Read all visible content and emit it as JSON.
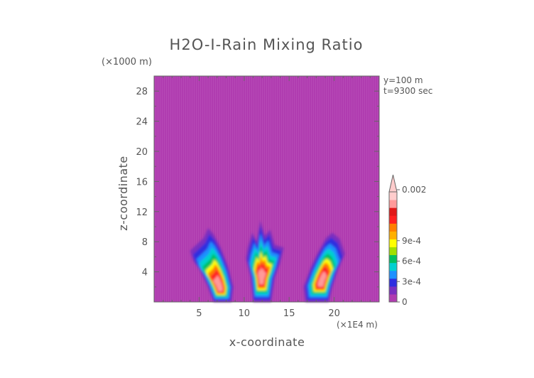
{
  "chart_data": {
    "type": "heatmap",
    "title": "H2O-I-Rain Mixing Ratio",
    "xlabel": "x-coordinate",
    "ylabel": "z-coordinate",
    "x_units": "(×1E4 m)",
    "y_units": "(×1000 m)",
    "xlim": [
      0,
      25
    ],
    "ylim": [
      0,
      30
    ],
    "x_ticks": [
      5,
      10,
      15,
      20
    ],
    "y_ticks": [
      4,
      8,
      12,
      16,
      20,
      24,
      28
    ],
    "annotations": [
      "y=100 m",
      "t=9300 sec"
    ],
    "background_color": "#b03cb0",
    "colorbar": {
      "labels": [
        {
          "value": 0,
          "text": "0"
        },
        {
          "value": 0.0003,
          "text": "3e-4"
        },
        {
          "value": 0.0006,
          "text": "6e-4"
        },
        {
          "value": 0.0009,
          "text": "9e-4"
        },
        {
          "value": 0.002,
          "text": "0.002"
        }
      ],
      "colors": [
        "#b03cb0",
        "#7a2fc0",
        "#2e2ee0",
        "#1e90ff",
        "#00d0d0",
        "#00c060",
        "#a0e000",
        "#ffff00",
        "#ffb000",
        "#ff7f00",
        "#ff2020",
        "#e01818",
        "#ff9a9a",
        "#ffcccc"
      ]
    },
    "features": [
      {
        "name": "left plume",
        "x_range": [
          4.5,
          8.5
        ],
        "z_range": [
          0,
          9.7
        ]
      },
      {
        "name": "center plume",
        "x_range": [
          10.5,
          14.5
        ],
        "z_range": [
          0,
          10.8
        ]
      },
      {
        "name": "right plume",
        "x_range": [
          16.5,
          21.5
        ],
        "z_range": [
          0,
          9.2
        ]
      }
    ]
  }
}
